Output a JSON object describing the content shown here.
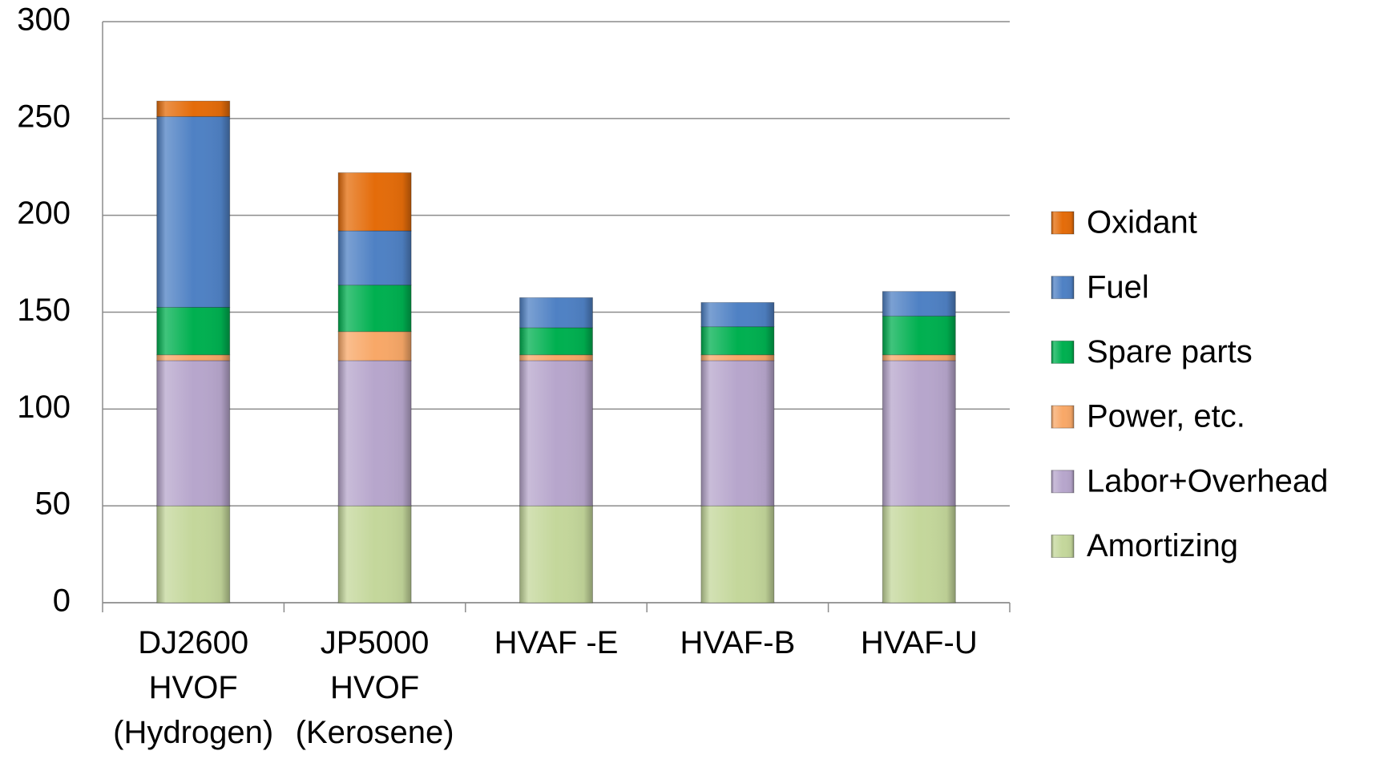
{
  "chart_data": {
    "type": "stacked_bar",
    "categories": [
      "DJ2600\nHVOF\n(Hydrogen)",
      "JP5000\nHVOF\n(Kerosene)",
      "HVAF -E",
      "HVAF-B",
      "HVAF-U"
    ],
    "series": [
      {
        "name": "Amortizing",
        "color": "#c4d79b",
        "values": [
          50,
          50,
          50,
          50,
          50
        ]
      },
      {
        "name": "Labor+Overhead",
        "color": "#b7a6cc",
        "values": [
          75,
          75,
          75,
          75,
          75
        ]
      },
      {
        "name": "Power, etc.",
        "color": "#f8a868",
        "values": [
          3,
          15,
          3,
          3,
          3
        ]
      },
      {
        "name": "Spare parts",
        "color": "#00b050",
        "values": [
          24.5,
          24,
          14,
          14.5,
          20
        ]
      },
      {
        "name": "Fuel",
        "color": "#4f81c4",
        "values": [
          98.5,
          28,
          15.5,
          12.5,
          12.7
        ]
      },
      {
        "name": "Oxidant",
        "color": "#e46c0a",
        "values": [
          8,
          30,
          null,
          null,
          null
        ]
      }
    ],
    "ylim": [
      0,
      300
    ],
    "yticks": [
      0,
      50,
      100,
      150,
      200,
      250,
      300
    ],
    "grid": true
  }
}
